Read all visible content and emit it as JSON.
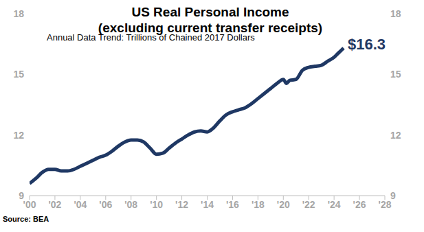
{
  "chart_data": {
    "type": "line",
    "title": "US Real Personal Income\n(excluding current transfer receipts)",
    "subtitle": "Annual Data Trend: Trillions of Chained 2017 Dollars",
    "source": "Source: BEA",
    "annotations": [
      "$16.3"
    ],
    "x": [
      2000,
      2000.5,
      2001,
      2001.5,
      2002,
      2002.5,
      2003,
      2003.5,
      2004,
      2004.5,
      2005,
      2005.5,
      2006,
      2006.5,
      2007,
      2007.5,
      2008,
      2008.5,
      2009,
      2009.5,
      2010,
      2010.5,
      2011,
      2011.5,
      2012,
      2012.5,
      2013,
      2013.5,
      2014,
      2014.5,
      2015,
      2015.5,
      2016,
      2016.5,
      2017,
      2017.5,
      2018,
      2018.5,
      2019,
      2019.5,
      2020,
      2020.25,
      2020.5,
      2021,
      2021.5,
      2022,
      2022.5,
      2023,
      2023.5,
      2024,
      2024.25,
      2024.5,
      2024.75
    ],
    "series": [
      {
        "name": "US Real Personal Income (excluding current transfer receipts)",
        "color": "#1f3864",
        "values": [
          9.6,
          9.85,
          10.15,
          10.3,
          10.3,
          10.22,
          10.22,
          10.3,
          10.45,
          10.6,
          10.75,
          10.9,
          11.0,
          11.2,
          11.45,
          11.65,
          11.75,
          11.75,
          11.65,
          11.35,
          11.05,
          11.1,
          11.35,
          11.6,
          11.8,
          12.0,
          12.15,
          12.2,
          12.15,
          12.35,
          12.7,
          13.0,
          13.15,
          13.25,
          13.35,
          13.55,
          13.8,
          14.05,
          14.3,
          14.55,
          14.75,
          14.55,
          14.7,
          14.75,
          15.2,
          15.35,
          15.4,
          15.45,
          15.65,
          15.85,
          16.0,
          16.15,
          16.3
        ]
      }
    ],
    "xlim": [
      2000,
      2028
    ],
    "xticks": [
      {
        "value": 2000,
        "label": "'00"
      },
      {
        "value": 2002,
        "label": "'02"
      },
      {
        "value": 2004,
        "label": "'04"
      },
      {
        "value": 2006,
        "label": "'06"
      },
      {
        "value": 2008,
        "label": "'08"
      },
      {
        "value": 2010,
        "label": "'10"
      },
      {
        "value": 2012,
        "label": "'12"
      },
      {
        "value": 2014,
        "label": "'14"
      },
      {
        "value": 2016,
        "label": "'16"
      },
      {
        "value": 2018,
        "label": "'18"
      },
      {
        "value": 2020,
        "label": "'20"
      },
      {
        "value": 2022,
        "label": "'22"
      },
      {
        "value": 2024,
        "label": "'24"
      },
      {
        "value": 2026,
        "label": "'26"
      },
      {
        "value": 2028,
        "label": "'28"
      }
    ],
    "ylim": [
      9,
      18
    ],
    "yticks": [
      9,
      12,
      15,
      18
    ],
    "grid": false
  }
}
